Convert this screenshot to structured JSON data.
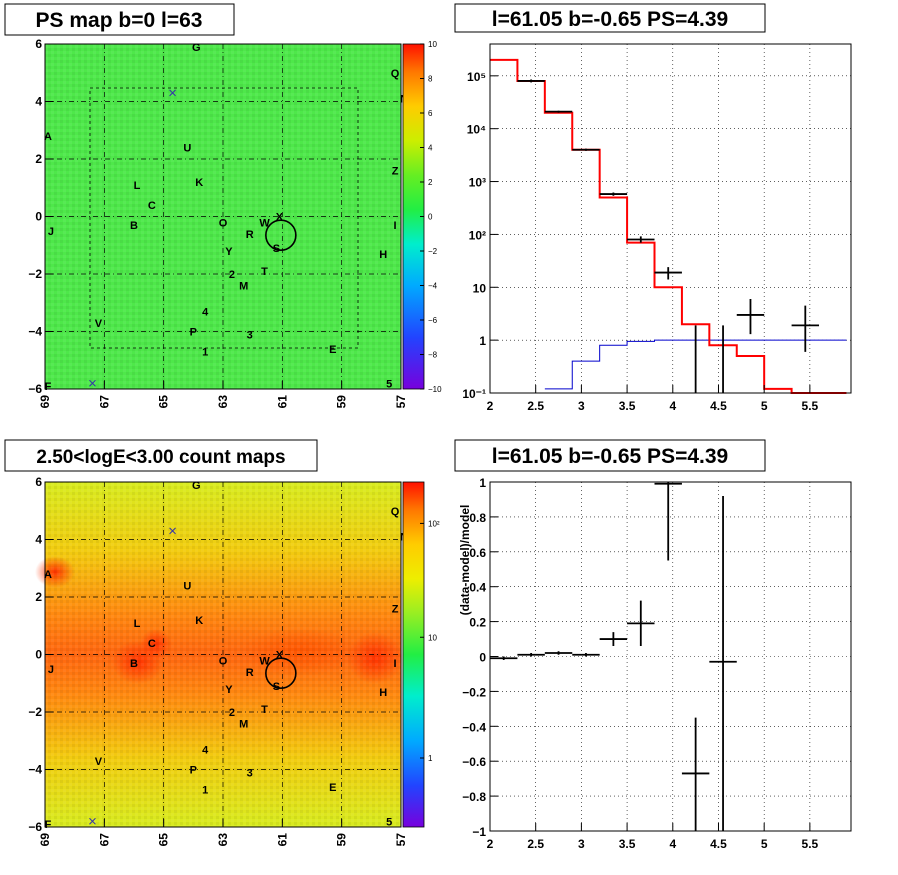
{
  "panels": {
    "ps_map": {
      "title": "PS map b=0 l=63"
    },
    "spectrum": {
      "title": "l=61.05 b=-0.65 PS=4.39"
    },
    "count_map": {
      "title": "2.50<logE<3.00 count maps"
    },
    "residual": {
      "title": "l=61.05 b=-0.65 PS=4.39"
    }
  },
  "sky": {
    "x_ticks": [
      "69",
      "67",
      "65",
      "63",
      "61",
      "59",
      "57"
    ],
    "y_ticks": [
      "6",
      "4",
      "2",
      "0",
      "−2",
      "−4",
      "−6"
    ],
    "sources": [
      {
        "label": "G",
        "l": 63.9,
        "b": 5.9
      },
      {
        "label": "Q",
        "l": 57.2,
        "b": 5.0
      },
      {
        "label": "N",
        "l": 56.9,
        "b": 4.1
      },
      {
        "label": "A",
        "l": 68.9,
        "b": 2.8
      },
      {
        "label": "U",
        "l": 64.2,
        "b": 2.4
      },
      {
        "label": "L",
        "l": 65.9,
        "b": 1.1
      },
      {
        "label": "K",
        "l": 63.8,
        "b": 1.2
      },
      {
        "label": "Z",
        "l": 57.2,
        "b": 1.6
      },
      {
        "label": "C",
        "l": 65.4,
        "b": 0.4
      },
      {
        "label": "O",
        "l": 63.0,
        "b": -0.2
      },
      {
        "label": "W",
        "l": 61.6,
        "b": -0.2
      },
      {
        "label": "X",
        "l": 61.1,
        "b": 0.0
      },
      {
        "label": "R",
        "l": 62.1,
        "b": -0.6
      },
      {
        "label": "I",
        "l": 57.2,
        "b": -0.3
      },
      {
        "label": "J",
        "l": 68.8,
        "b": -0.5
      },
      {
        "label": "B",
        "l": 66.0,
        "b": -0.3
      },
      {
        "label": "S",
        "l": 61.2,
        "b": -1.1
      },
      {
        "label": "Y",
        "l": 62.8,
        "b": -1.2
      },
      {
        "label": "H",
        "l": 57.6,
        "b": -1.3
      },
      {
        "label": "2",
        "l": 62.7,
        "b": -2.0
      },
      {
        "label": "T",
        "l": 61.6,
        "b": -1.9
      },
      {
        "label": "M",
        "l": 62.3,
        "b": -2.4
      },
      {
        "label": "4",
        "l": 63.6,
        "b": -3.3
      },
      {
        "label": "V",
        "l": 67.2,
        "b": -3.7
      },
      {
        "label": "P",
        "l": 64.0,
        "b": -4.0
      },
      {
        "label": "3",
        "l": 62.1,
        "b": -4.1
      },
      {
        "label": "1",
        "l": 63.6,
        "b": -4.7
      },
      {
        "label": "E",
        "l": 59.3,
        "b": -4.6
      },
      {
        "label": "F",
        "l": 68.9,
        "b": -5.9
      },
      {
        "label": "5",
        "l": 57.4,
        "b": -5.8
      }
    ],
    "ring": {
      "l": 61.05,
      "b": -0.65
    }
  },
  "ps_colorbar": {
    "ticks": [
      "10",
      "8",
      "6",
      "4",
      "2",
      "0",
      "−2",
      "−4",
      "−6",
      "−8",
      "−10"
    ]
  },
  "count_colorbar": {
    "ticks": [
      "10²",
      "10",
      "1"
    ]
  },
  "colors": {
    "accent_red": "#ff0000",
    "model_blue": "#0000cc",
    "data": "#000000"
  },
  "chart_data": [
    {
      "type": "line",
      "name": "spectrum",
      "xlim": [
        2,
        5.95
      ],
      "ylim": [
        0.1,
        400000
      ],
      "log_y": true,
      "x_ticks": [
        "2",
        "2.5",
        "3",
        "3.5",
        "4",
        "4.5",
        "5",
        "5.5"
      ],
      "y_ticks": [
        "10⁻¹",
        "1",
        "10",
        "10²",
        "10³",
        "10⁴",
        "10⁵"
      ],
      "bin_edges": [
        2.0,
        2.3,
        2.6,
        2.9,
        3.2,
        3.5,
        3.8,
        4.1,
        4.4,
        4.7,
        5.0,
        5.3,
        5.6,
        5.9
      ],
      "model_total": [
        200000,
        80000,
        20000,
        4000,
        500,
        70,
        10,
        2,
        0.8,
        0.5,
        0.12,
        0.1,
        0.1
      ],
      "model_source": [
        null,
        null,
        0.12,
        0.4,
        0.8,
        0.95,
        1.0,
        1.0,
        1.0,
        1.0,
        1.0,
        1.0,
        1.0
      ],
      "data": [
        {
          "x": 2.45,
          "y": 80000,
          "xerr": 0.15,
          "ylo": 75000,
          "yhi": 85000
        },
        {
          "x": 2.75,
          "y": 21000,
          "xerr": 0.15,
          "ylo": 20000,
          "yhi": 22000
        },
        {
          "x": 3.05,
          "y": 4000,
          "xerr": 0.15,
          "ylo": 3800,
          "yhi": 4200
        },
        {
          "x": 3.35,
          "y": 580,
          "xerr": 0.15,
          "ylo": 540,
          "yhi": 620
        },
        {
          "x": 3.65,
          "y": 80,
          "xerr": 0.15,
          "ylo": 70,
          "yhi": 92
        },
        {
          "x": 3.95,
          "y": 19,
          "xerr": 0.15,
          "ylo": 14,
          "yhi": 24
        },
        {
          "x": 4.25,
          "y": 0.1,
          "xerr": 0.0,
          "ylo": 0.1,
          "yhi": 1.9
        },
        {
          "x": 4.55,
          "y": 0.1,
          "xerr": 0.0,
          "ylo": 0.1,
          "yhi": 1.9
        },
        {
          "x": 4.85,
          "y": 3,
          "xerr": 0.15,
          "ylo": 1.3,
          "yhi": 6
        },
        {
          "x": 5.45,
          "y": 1.9,
          "xerr": 0.15,
          "ylo": 0.6,
          "yhi": 4.5
        }
      ]
    },
    {
      "type": "scatter",
      "name": "residual",
      "ylabel": "(data-model)/model",
      "xlim": [
        2,
        5.95
      ],
      "ylim": [
        -1,
        1
      ],
      "x_ticks": [
        "2",
        "2.5",
        "3",
        "3.5",
        "4",
        "4.5",
        "5",
        "5.5"
      ],
      "y_ticks": [
        "1",
        "0.8",
        "0.6",
        "0.4",
        "0.2",
        "0",
        "−0.2",
        "−0.4",
        "−0.6",
        "−0.8",
        "−1"
      ],
      "data": [
        {
          "x": 2.15,
          "y": -0.01,
          "xerr": 0.15,
          "ylo": -0.02,
          "yhi": 0.0
        },
        {
          "x": 2.45,
          "y": 0.01,
          "xerr": 0.15,
          "ylo": 0.0,
          "yhi": 0.02
        },
        {
          "x": 2.75,
          "y": 0.02,
          "xerr": 0.15,
          "ylo": 0.01,
          "yhi": 0.03
        },
        {
          "x": 3.05,
          "y": 0.01,
          "xerr": 0.15,
          "ylo": 0.0,
          "yhi": 0.02
        },
        {
          "x": 3.35,
          "y": 0.1,
          "xerr": 0.15,
          "ylo": 0.06,
          "yhi": 0.14
        },
        {
          "x": 3.65,
          "y": 0.19,
          "xerr": 0.15,
          "ylo": 0.06,
          "yhi": 0.32
        },
        {
          "x": 3.95,
          "y": 0.99,
          "xerr": 0.15,
          "ylo": 0.55,
          "yhi": 1.0
        },
        {
          "x": 4.25,
          "y": -0.67,
          "xerr": 0.15,
          "ylo": -1.0,
          "yhi": -0.35
        },
        {
          "x": 4.55,
          "y": -0.03,
          "xerr": 0.15,
          "ylo": -1.0,
          "yhi": 0.92
        }
      ]
    }
  ]
}
